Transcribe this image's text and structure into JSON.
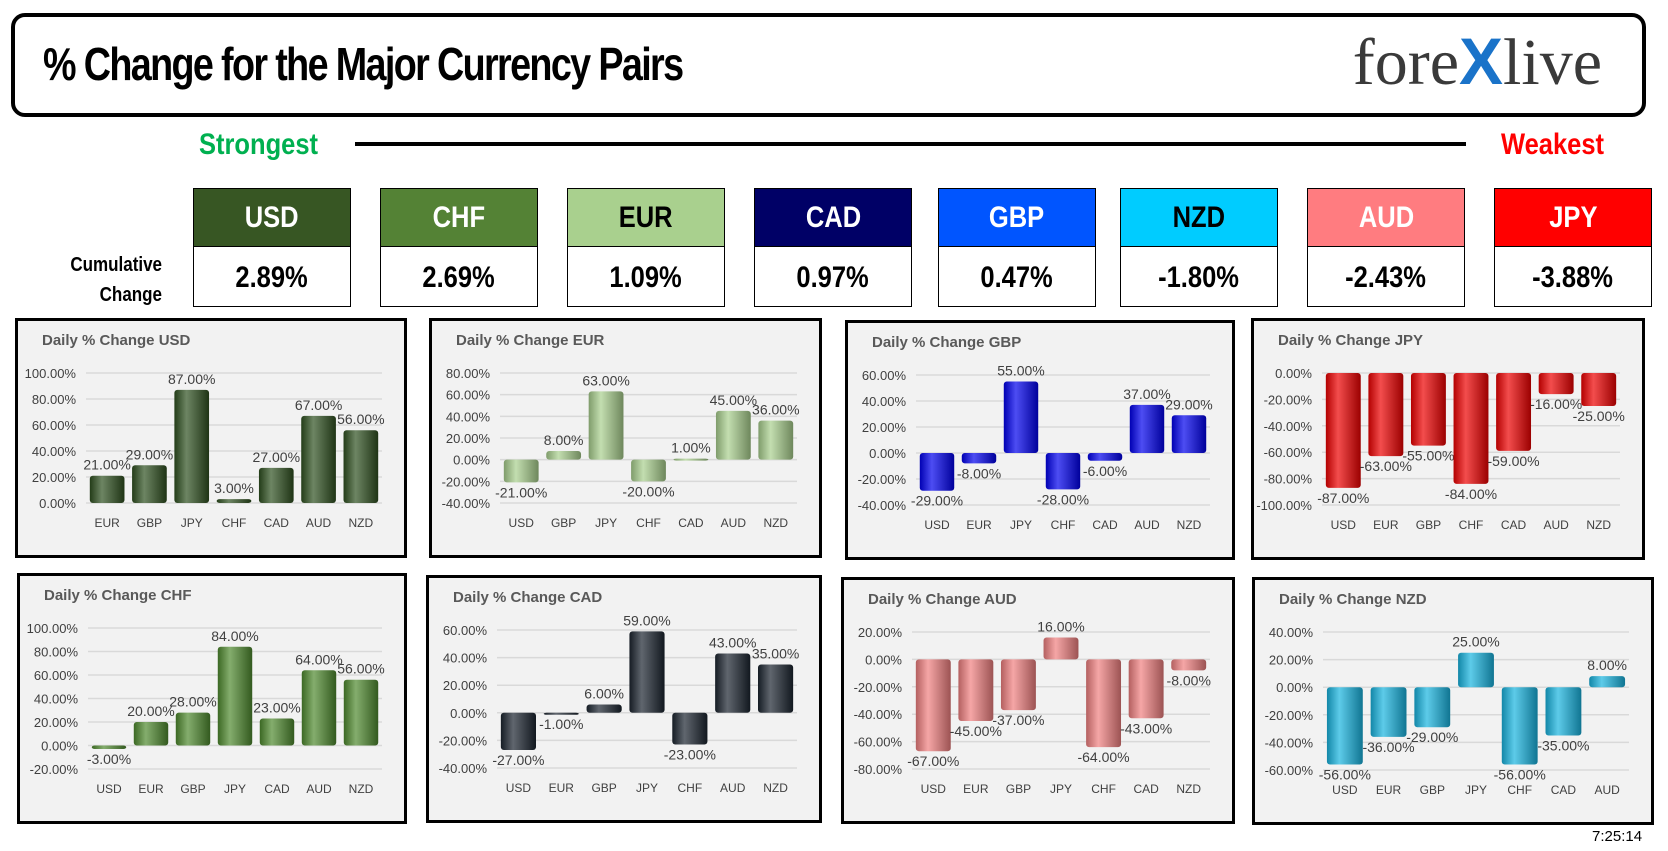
{
  "header": {
    "title": "% Change for the Major Currency Pairs",
    "logo": {
      "pre": "fore",
      "x": "X",
      "post": "live"
    }
  },
  "scale": {
    "strongest": "Strongest",
    "weakest": "Weakest"
  },
  "cumulative": {
    "label_line1": "Cumulative",
    "label_line2": "Change",
    "currencies": [
      {
        "code": "USD",
        "value": "2.89%",
        "color": "#375623",
        "text": "#ffffff"
      },
      {
        "code": "CHF",
        "value": "2.69%",
        "color": "#548235",
        "text": "#ffffff"
      },
      {
        "code": "EUR",
        "value": "1.09%",
        "color": "#a9d08e",
        "text": "#000000"
      },
      {
        "code": "CAD",
        "value": "0.97%",
        "color": "#000066",
        "text": "#ffffff"
      },
      {
        "code": "GBP",
        "value": "0.47%",
        "color": "#0055ff",
        "text": "#ffffff"
      },
      {
        "code": "NZD",
        "value": "-1.80%",
        "color": "#00ccff",
        "text": "#000000"
      },
      {
        "code": "AUD",
        "value": "-2.43%",
        "color": "#ff7c80",
        "text": "#ffffff"
      },
      {
        "code": "JPY",
        "value": "-3.88%",
        "color": "#ff0000",
        "text": "#ffffff"
      }
    ]
  },
  "timestamp": "7:25:14",
  "chart_data": [
    {
      "type": "bar",
      "title": "Daily % Change USD",
      "categories": [
        "EUR",
        "GBP",
        "JPY",
        "CHF",
        "CAD",
        "AUD",
        "NZD"
      ],
      "values": [
        0.21,
        0.29,
        0.87,
        0.03,
        0.27,
        0.67,
        0.56
      ],
      "ylim": [
        0,
        1.0
      ],
      "ystep": 0.2,
      "color": "#2f5020",
      "grid": true
    },
    {
      "type": "bar",
      "title": "Daily % Change EUR",
      "categories": [
        "USD",
        "GBP",
        "JPY",
        "CHF",
        "CAD",
        "AUD",
        "NZD"
      ],
      "values": [
        -0.21,
        0.08,
        0.63,
        -0.2,
        0.01,
        0.45,
        0.36
      ],
      "ylim": [
        -0.4,
        0.8
      ],
      "ystep": 0.2,
      "color": "#a9d08e",
      "grid": true
    },
    {
      "type": "bar",
      "title": "Daily % Change GBP",
      "categories": [
        "USD",
        "EUR",
        "JPY",
        "CHF",
        "CAD",
        "AUD",
        "NZD"
      ],
      "values": [
        -0.29,
        -0.08,
        0.55,
        -0.28,
        -0.06,
        0.37,
        0.29
      ],
      "ylim": [
        -0.4,
        0.6
      ],
      "ystep": 0.2,
      "color": "#0000ee",
      "grid": true
    },
    {
      "type": "bar",
      "title": "Daily % Change JPY",
      "categories": [
        "USD",
        "EUR",
        "GBP",
        "CHF",
        "CAD",
        "AUD",
        "NZD"
      ],
      "values": [
        -0.87,
        -0.63,
        -0.55,
        -0.84,
        -0.59,
        -0.16,
        -0.25
      ],
      "ylim": [
        -1.0,
        0
      ],
      "ystep": 0.2,
      "color": "#ee0000",
      "grid": true
    },
    {
      "type": "bar",
      "title": "Daily % Change CHF",
      "categories": [
        "USD",
        "EUR",
        "GBP",
        "JPY",
        "CAD",
        "AUD",
        "NZD"
      ],
      "values": [
        -0.03,
        0.2,
        0.28,
        0.84,
        0.23,
        0.64,
        0.56
      ],
      "ylim": [
        -0.2,
        1.0
      ],
      "ystep": 0.2,
      "color": "#4f8a2f",
      "grid": true
    },
    {
      "type": "bar",
      "title": "Daily % Change CAD",
      "categories": [
        "USD",
        "EUR",
        "GBP",
        "JPY",
        "CHF",
        "AUD",
        "NZD"
      ],
      "values": [
        -0.27,
        -0.01,
        0.06,
        0.59,
        -0.23,
        0.43,
        0.35
      ],
      "ylim": [
        -0.4,
        0.6
      ],
      "ystep": 0.2,
      "color": "#1c2530",
      "grid": true
    },
    {
      "type": "bar",
      "title": "Daily % Change AUD",
      "categories": [
        "USD",
        "EUR",
        "GBP",
        "JPY",
        "CHF",
        "CAD",
        "NZD"
      ],
      "values": [
        -0.67,
        -0.45,
        -0.37,
        0.16,
        -0.64,
        -0.43,
        -0.08
      ],
      "ylim": [
        -0.8,
        0.2
      ],
      "ystep": 0.2,
      "color": "#f08080",
      "grid": true
    },
    {
      "type": "bar",
      "title": "Daily % Change NZD",
      "categories": [
        "USD",
        "EUR",
        "GBP",
        "JPY",
        "CHF",
        "CAD",
        "AUD"
      ],
      "values": [
        -0.56,
        -0.36,
        -0.29,
        0.25,
        -0.56,
        -0.35,
        0.08
      ],
      "ylim": [
        -0.6,
        0.4
      ],
      "ystep": 0.2,
      "color": "#18b4e0",
      "grid": true
    }
  ]
}
